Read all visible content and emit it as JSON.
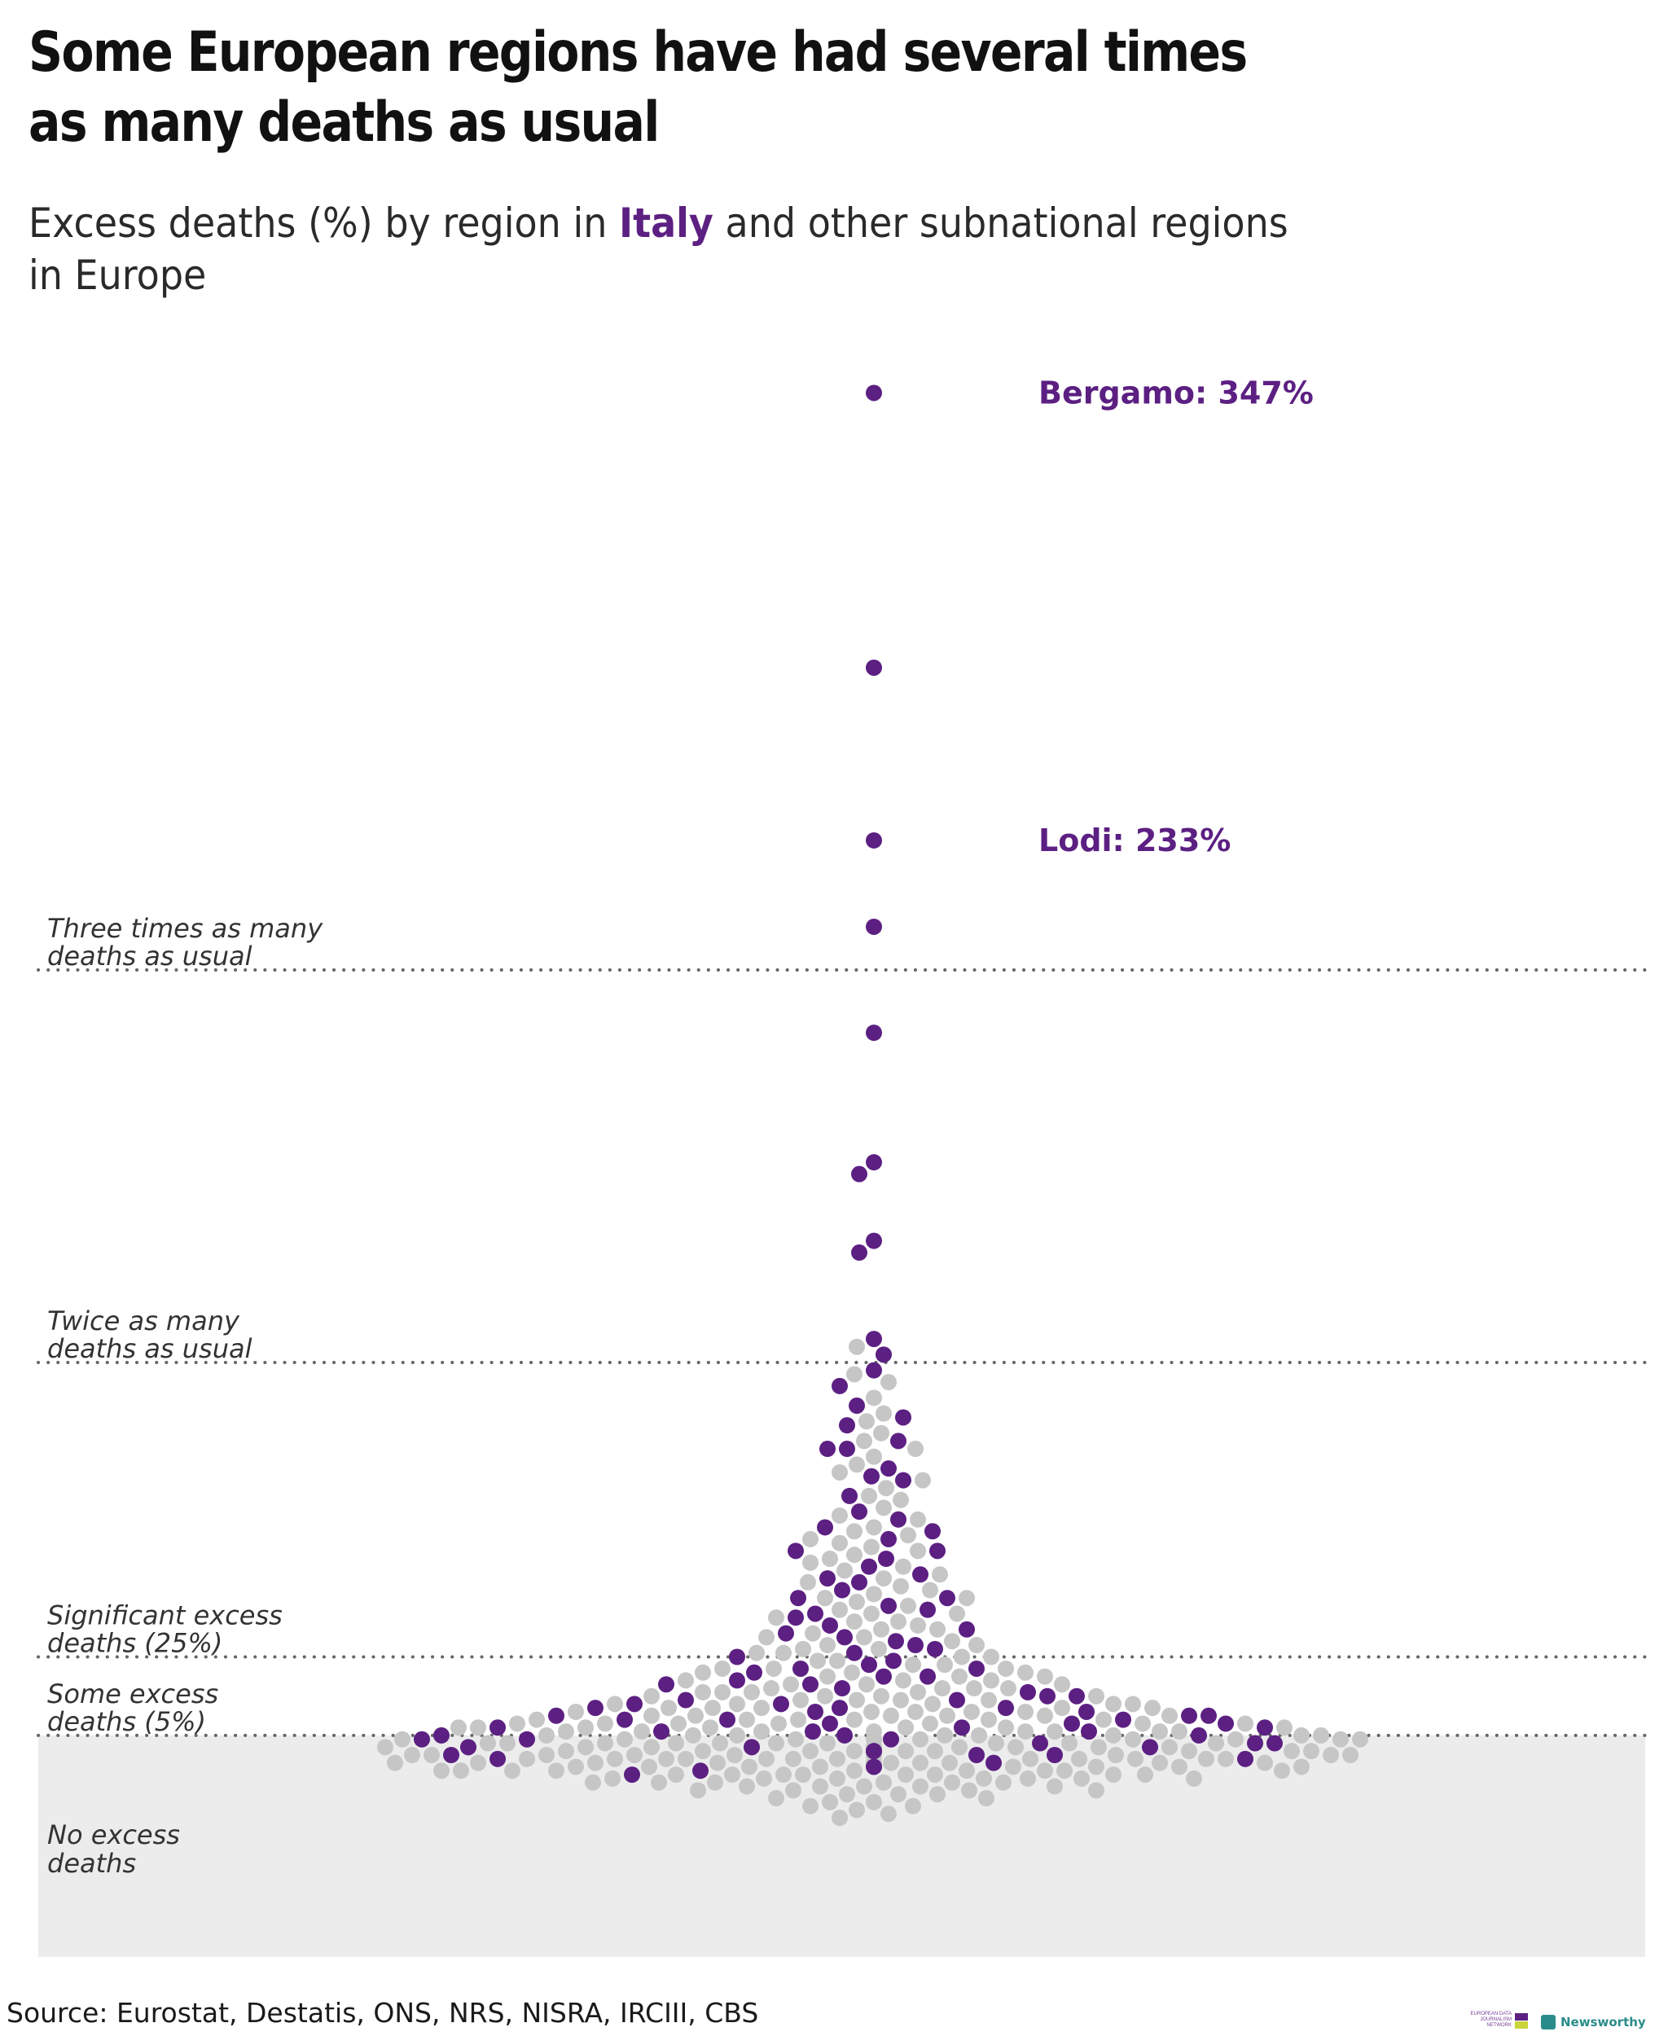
{
  "header": {
    "title_line1": "Some European regions have had several times",
    "title_line2": "as many deaths as usual",
    "subtitle_before": "Excess deaths (%) by region in ",
    "subtitle_highlight": "Italy",
    "subtitle_after_line1": " and other subnational regions",
    "subtitle_line2": "in Europe"
  },
  "colors": {
    "italy": "#5c1f82",
    "other": "#c6c6c6",
    "no_excess_band": "#ececec",
    "reference_line": "#666666",
    "annotation": "#5c1f82"
  },
  "footer": {
    "source": "Source: Eurostat, Destatis, ONS, NRS, NISRA, IRCIII, CBS",
    "logo_edjnet": "EUROPEAN DATA JOURNALISM NETWORK",
    "logo_newsworthy": "Newsworthy"
  },
  "chart_data": {
    "type": "scatter",
    "layout": "beeswarm",
    "title": "",
    "xlabel": "",
    "ylabel": "",
    "ylim": [
      -20,
      360
    ],
    "grid": false,
    "legend": "none",
    "reference_lines": [
      {
        "value": 200,
        "label_line1": "Three times as many",
        "label_line2": "deaths as usual"
      },
      {
        "value": 100,
        "label_line1": "Twice as many",
        "label_line2": "deaths as usual"
      },
      {
        "value": 25,
        "label_line1": "Significant excess",
        "label_line2": "deaths (25%)"
      },
      {
        "value": 5,
        "label_line1": "Some excess",
        "label_line2": "deaths (5%)"
      }
    ],
    "no_excess_region": {
      "below": 5,
      "label_line1": "No excess",
      "label_line2": "deaths"
    },
    "annotations": [
      {
        "label": "Bergamo: 347%",
        "value": 347
      },
      {
        "label": "Lodi: 233%",
        "value": 233
      }
    ],
    "series": [
      {
        "name": "Italy",
        "values": [
          347,
          277,
          233,
          211,
          184,
          151,
          148,
          131,
          128,
          106,
          102,
          98,
          94,
          89,
          86,
          84,
          80,
          78,
          78,
          73,
          71,
          70,
          66,
          62,
          60,
          58,
          57,
          55,
          52,
          52,
          50,
          48,
          46,
          45,
          44,
          42,
          40,
          40,
          38,
          37,
          36,
          35,
          33,
          32,
          31,
          30,
          29,
          28,
          27,
          26,
          25,
          24,
          23,
          22,
          22,
          21,
          20,
          20,
          19,
          18,
          18,
          17,
          16,
          15,
          15,
          14,
          14,
          13,
          13,
          12,
          12,
          12,
          11,
          11,
          10,
          10,
          10,
          9,
          9,
          9,
          8,
          8,
          8,
          7,
          7,
          7,
          6,
          6,
          6,
          5,
          5,
          5,
          4,
          4,
          4,
          3,
          3,
          3,
          2,
          2,
          2,
          1,
          1,
          0,
          0,
          0,
          -1,
          -1,
          -2,
          -3,
          -4,
          -5
        ]
      },
      {
        "name": "Other European regions",
        "values": [
          104,
          97,
          95,
          91,
          87,
          85,
          82,
          80,
          78,
          76,
          74,
          72,
          70,
          68,
          66,
          65,
          63,
          61,
          60,
          58,
          57,
          56,
          55,
          54,
          53,
          52,
          51,
          50,
          49,
          48,
          47,
          46,
          45,
          44,
          43,
          42,
          41,
          40,
          40,
          39,
          38,
          37,
          36,
          36,
          35,
          34,
          34,
          33,
          32,
          32,
          31,
          30,
          30,
          29,
          28,
          28,
          27,
          27,
          26,
          26,
          25,
          25,
          24,
          24,
          23,
          23,
          22,
          22,
          22,
          21,
          21,
          21,
          20,
          20,
          20,
          19,
          19,
          19,
          18,
          18,
          18,
          17,
          17,
          17,
          17,
          16,
          16,
          16,
          16,
          15,
          15,
          15,
          15,
          14,
          14,
          14,
          14,
          13,
          13,
          13,
          13,
          13,
          12,
          12,
          12,
          12,
          12,
          11,
          11,
          11,
          11,
          11,
          10,
          10,
          10,
          10,
          10,
          10,
          9,
          9,
          9,
          9,
          9,
          9,
          8,
          8,
          8,
          8,
          8,
          8,
          8,
          7,
          7,
          7,
          7,
          7,
          7,
          7,
          6,
          6,
          6,
          6,
          6,
          6,
          6,
          6,
          5,
          5,
          5,
          5,
          5,
          5,
          5,
          5,
          4,
          4,
          4,
          4,
          4,
          4,
          4,
          4,
          4,
          3,
          3,
          3,
          3,
          3,
          3,
          3,
          3,
          3,
          3,
          2,
          2,
          2,
          2,
          2,
          2,
          2,
          2,
          2,
          2,
          2,
          1,
          1,
          1,
          1,
          1,
          1,
          1,
          1,
          1,
          1,
          1,
          1,
          0,
          0,
          0,
          0,
          0,
          0,
          0,
          0,
          0,
          0,
          0,
          0,
          0,
          -1,
          -1,
          -1,
          -1,
          -1,
          -1,
          -1,
          -1,
          -1,
          -1,
          -1,
          -1,
          -2,
          -2,
          -2,
          -2,
          -2,
          -2,
          -2,
          -2,
          -2,
          -2,
          -2,
          -3,
          -3,
          -3,
          -3,
          -3,
          -3,
          -3,
          -3,
          -3,
          -3,
          -4,
          -4,
          -4,
          -4,
          -4,
          -4,
          -4,
          -4,
          -4,
          -5,
          -5,
          -5,
          -5,
          -5,
          -5,
          -5,
          -5,
          -6,
          -6,
          -6,
          -6,
          -6,
          -6,
          -6,
          -7,
          -7,
          -7,
          -7,
          -7,
          -7,
          -8,
          -8,
          -8,
          -8,
          -8,
          -9,
          -9,
          -9,
          -9,
          -10,
          -10,
          -10,
          -11,
          -11,
          -12,
          -12,
          -13,
          -13,
          -14,
          -15,
          -16
        ]
      }
    ]
  }
}
